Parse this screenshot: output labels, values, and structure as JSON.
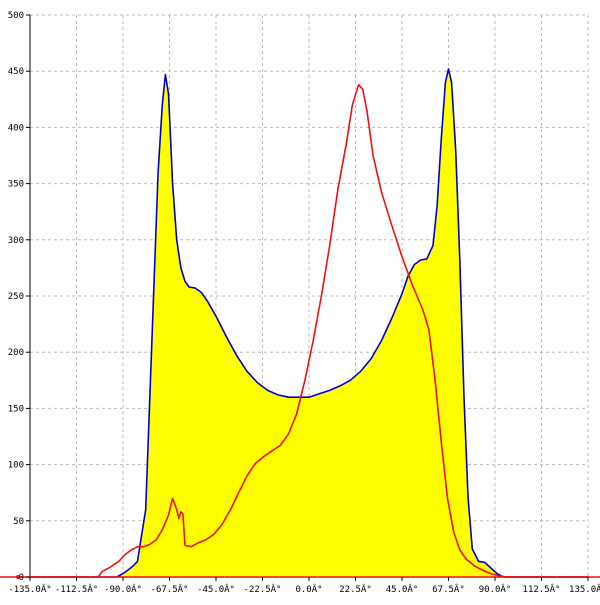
{
  "chart_data": {
    "type": "area",
    "title": "",
    "xlabel": "",
    "ylabel": "",
    "xlim": [
      -135,
      135
    ],
    "ylim": [
      0,
      500
    ],
    "grid": true,
    "x_ticks": [
      -135,
      -112.5,
      -90,
      -67.5,
      -45,
      -22.5,
      0,
      22.5,
      45,
      67.5,
      90,
      112.5,
      135
    ],
    "x_tick_labels": [
      "-135.0Â°",
      "-112.5Â°",
      "-90.0Â°",
      "-67.5Â°",
      "-45.0Â°",
      "-22.5Â°",
      "0.0Â°",
      "22.5Â°",
      "45.0Â°",
      "67.5Â°",
      "90.0Â°",
      "112.5Â°",
      "135.0Â°"
    ],
    "y_ticks": [
      0,
      50,
      100,
      150,
      200,
      250,
      300,
      350,
      400,
      450,
      500
    ],
    "y_tick_labels": [
      "0",
      "50",
      "100",
      "150",
      "200",
      "250",
      "300",
      "350",
      "400",
      "450",
      "500"
    ],
    "colors": {
      "fill": "#ffff00",
      "blue_series": "#0000cc",
      "red_series": "#ee1111",
      "grid": "#bbbbbb",
      "axis": "#000000",
      "baseline": "#ee1111"
    },
    "series": [
      {
        "color": "#0000cc",
        "filled": true,
        "points": [
          [
            -135,
            0
          ],
          [
            -97,
            0
          ],
          [
            -93,
            0
          ],
          [
            -90,
            3
          ],
          [
            -87,
            7
          ],
          [
            -85,
            10
          ],
          [
            -83,
            14
          ],
          [
            -79,
            60
          ],
          [
            -76,
            210
          ],
          [
            -73,
            360
          ],
          [
            -71,
            420
          ],
          [
            -69.5,
            447
          ],
          [
            -68,
            430
          ],
          [
            -66,
            350
          ],
          [
            -64,
            300
          ],
          [
            -62,
            275
          ],
          [
            -60,
            263
          ],
          [
            -58,
            258
          ],
          [
            -55,
            257
          ],
          [
            -52,
            253
          ],
          [
            -49,
            245
          ],
          [
            -45,
            232
          ],
          [
            -40,
            214
          ],
          [
            -35,
            197
          ],
          [
            -30,
            183
          ],
          [
            -25,
            173
          ],
          [
            -20,
            166
          ],
          [
            -15,
            162
          ],
          [
            -10,
            160
          ],
          [
            -5,
            160
          ],
          [
            0,
            160
          ],
          [
            5,
            163
          ],
          [
            10,
            166
          ],
          [
            15,
            170
          ],
          [
            20,
            175
          ],
          [
            25,
            183
          ],
          [
            30,
            194
          ],
          [
            35,
            210
          ],
          [
            40,
            230
          ],
          [
            45,
            252
          ],
          [
            48,
            268
          ],
          [
            51,
            278
          ],
          [
            54,
            282
          ],
          [
            57,
            283
          ],
          [
            60,
            295
          ],
          [
            62,
            330
          ],
          [
            64,
            390
          ],
          [
            66,
            440
          ],
          [
            67.5,
            452
          ],
          [
            69,
            440
          ],
          [
            71,
            380
          ],
          [
            73,
            280
          ],
          [
            75,
            160
          ],
          [
            77,
            70
          ],
          [
            79,
            25
          ],
          [
            82,
            14
          ],
          [
            85,
            13
          ],
          [
            88,
            8
          ],
          [
            91,
            3
          ],
          [
            94,
            0
          ],
          [
            135,
            0
          ]
        ]
      },
      {
        "color": "#ee1111",
        "filled": false,
        "points": [
          [
            -135,
            0
          ],
          [
            -102,
            0
          ],
          [
            -100,
            5
          ],
          [
            -96,
            9
          ],
          [
            -92,
            14
          ],
          [
            -89,
            20
          ],
          [
            -86,
            24
          ],
          [
            -83,
            27
          ],
          [
            -80,
            27
          ],
          [
            -77,
            29
          ],
          [
            -74,
            33
          ],
          [
            -71,
            42
          ],
          [
            -68,
            55
          ],
          [
            -66,
            70
          ],
          [
            -64,
            60
          ],
          [
            -63,
            52
          ],
          [
            -62,
            58
          ],
          [
            -61,
            56
          ],
          [
            -60,
            28
          ],
          [
            -57,
            27
          ],
          [
            -54,
            30
          ],
          [
            -50,
            33
          ],
          [
            -46,
            38
          ],
          [
            -42,
            47
          ],
          [
            -38,
            60
          ],
          [
            -34,
            75
          ],
          [
            -30,
            90
          ],
          [
            -26,
            101
          ],
          [
            -22,
            107
          ],
          [
            -18,
            112
          ],
          [
            -14,
            117
          ],
          [
            -10,
            127
          ],
          [
            -6,
            145
          ],
          [
            -2,
            175
          ],
          [
            2,
            210
          ],
          [
            6,
            250
          ],
          [
            10,
            295
          ],
          [
            14,
            345
          ],
          [
            18,
            385
          ],
          [
            21,
            420
          ],
          [
            24,
            438
          ],
          [
            26,
            434
          ],
          [
            28,
            415
          ],
          [
            31,
            375
          ],
          [
            35,
            343
          ],
          [
            40,
            313
          ],
          [
            45,
            285
          ],
          [
            50,
            260
          ],
          [
            55,
            238
          ],
          [
            58,
            220
          ],
          [
            61,
            175
          ],
          [
            64,
            120
          ],
          [
            67,
            70
          ],
          [
            70,
            40
          ],
          [
            73,
            24
          ],
          [
            76,
            16
          ],
          [
            80,
            10
          ],
          [
            84,
            6
          ],
          [
            88,
            3
          ],
          [
            92,
            1
          ],
          [
            96,
            0
          ],
          [
            135,
            0
          ]
        ]
      }
    ]
  }
}
